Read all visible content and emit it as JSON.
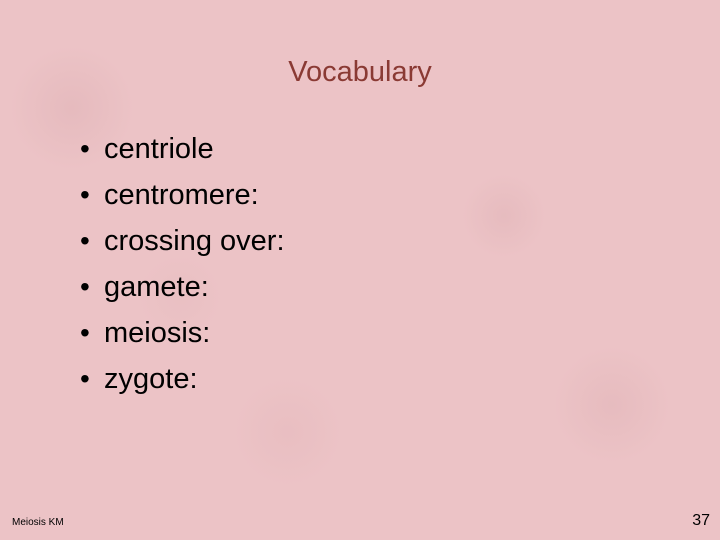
{
  "slide": {
    "title": "Vocabulary",
    "title_color": "#8a3a34",
    "title_fontsize": 29,
    "background_color": "#ecc3c6",
    "bullets": [
      {
        "text": "centriole"
      },
      {
        "text": "centromere:"
      },
      {
        "text": "crossing over:"
      },
      {
        "text": "gamete:"
      },
      {
        "text": "meiosis:"
      },
      {
        "text": "zygote:"
      }
    ],
    "bullet_glyph": "•",
    "body_fontsize": 29,
    "body_color": "#000000",
    "footer_left": "Meiosis KM",
    "footer_left_fontsize": 10,
    "page_number": "37",
    "page_number_fontsize": 16
  }
}
